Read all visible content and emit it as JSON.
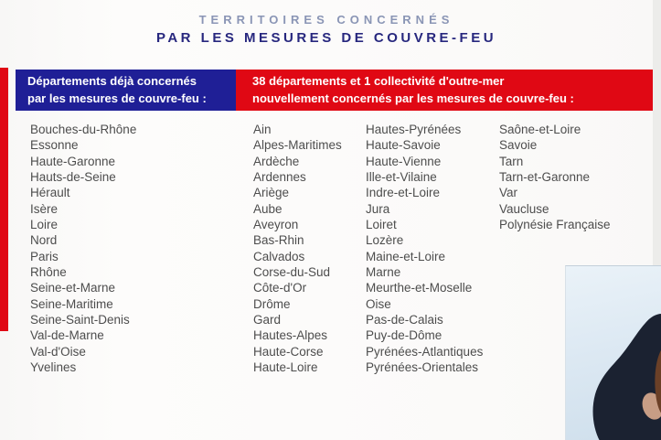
{
  "title": {
    "line1": "TERRITOIRES CONCERNÉS",
    "line2": "PAR LES MESURES DE COUVRE-FEU"
  },
  "header": {
    "existing": {
      "line1": "Départements déjà concernés",
      "line2": "par les mesures de couvre-feu :"
    },
    "new": {
      "line1": "38 départements et 1 collectivité d'outre-mer",
      "line2": "nouvellement concernés par les mesures de couvre-feu :"
    }
  },
  "lists": {
    "existing": [
      "Bouches-du-Rhône",
      "Essonne",
      "Haute-Garonne",
      "Hauts-de-Seine",
      "Hérault",
      "Isère",
      "Loire",
      "Nord",
      "Paris",
      "Rhône",
      "Seine-et-Marne",
      "Seine-Maritime",
      "Seine-Saint-Denis",
      "Val-de-Marne",
      "Val-d'Oise",
      "Yvelines"
    ],
    "new_col1": [
      "Ain",
      "Alpes-Maritimes",
      "Ardèche",
      "Ardennes",
      "Ariège",
      "Aube",
      "Aveyron",
      "Bas-Rhin",
      "Calvados",
      "Corse-du-Sud",
      "Côte-d'Or",
      "Drôme",
      "Gard",
      "Hautes-Alpes",
      "Haute-Corse",
      "Haute-Loire"
    ],
    "new_col2": [
      "Hautes-Pyrénées",
      "Haute-Savoie",
      "Haute-Vienne",
      "Ille-et-Vilaine",
      "Indre-et-Loire",
      "Jura",
      "Loiret",
      "Lozère",
      "Maine-et-Loire",
      "Marne",
      "Meurthe-et-Moselle",
      "Oise",
      "Pas-de-Calais",
      "Puy-de-Dôme",
      "Pyrénées-Atlantiques",
      "Pyrénées-Orientales"
    ],
    "new_col3": [
      "Saône-et-Loire",
      "Savoie",
      "Tarn",
      "Tarn-et-Garonne",
      "Var",
      "Vaucluse",
      "Polynésie Française"
    ]
  },
  "colors": {
    "navy": "#1f1f96",
    "red": "#e00814",
    "title-slate": "#8a95b5",
    "title-navy": "#27277e",
    "list-text": "#4d4d4d"
  }
}
